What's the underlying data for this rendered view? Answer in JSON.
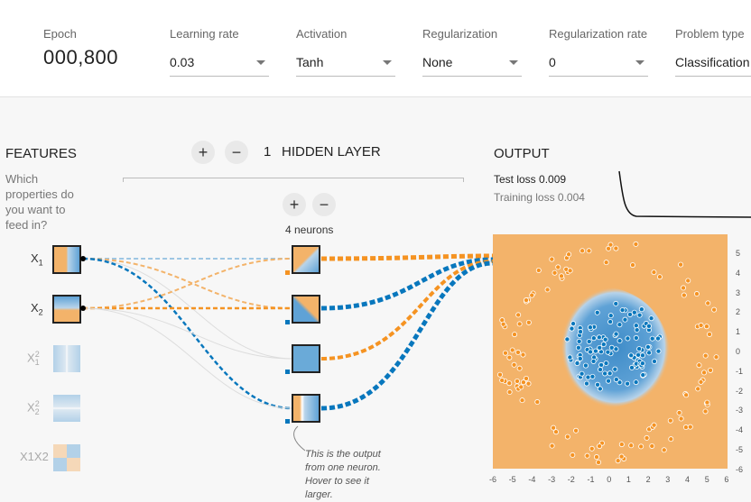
{
  "controls": {
    "epoch_label": "Epoch",
    "epoch_value": "000,800",
    "learning_rate_label": "Learning rate",
    "learning_rate_value": "0.03",
    "activation_label": "Activation",
    "activation_value": "Tanh",
    "regularization_label": "Regularization",
    "regularization_value": "None",
    "reg_rate_label": "Regularization rate",
    "reg_rate_value": "0",
    "problem_label": "Problem type",
    "problem_value": "Classification"
  },
  "features": {
    "title": "FEATURES",
    "question": [
      "Which",
      "properties do",
      "you want to",
      "feed in?"
    ],
    "items": [
      {
        "label": "X",
        "sup": "",
        "sub": "1",
        "active": true
      },
      {
        "label": "X",
        "sup": "",
        "sub": "2",
        "active": true
      },
      {
        "label": "X",
        "sup": "2",
        "sub": "1",
        "active": false
      },
      {
        "label": "X",
        "sup": "2",
        "sub": "2",
        "active": false
      },
      {
        "label": "X1X2",
        "sup": "",
        "sub": "",
        "active": false
      }
    ]
  },
  "hidden": {
    "plus": "+",
    "minus": "−",
    "count": "1",
    "title": "HIDDEN LAYER",
    "neurons_label": "4 neurons",
    "annotation": [
      "This is the output",
      "from one neuron.",
      "Hover to see it",
      "larger."
    ]
  },
  "output": {
    "title": "OUTPUT",
    "test_loss_label": "Test loss 0.009",
    "training_loss_label": "Training loss 0.004",
    "y_ticks": [
      "5",
      "4",
      "3",
      "2",
      "1",
      "0",
      "-1",
      "-2",
      "-3",
      "-4",
      "-5",
      "-6"
    ],
    "x_ticks": [
      "-6",
      "-5",
      "-4",
      "-3",
      "-2",
      "-1",
      "0",
      "1",
      "2",
      "3",
      "4",
      "5",
      "6"
    ]
  },
  "colors": {
    "orange": "#f59322",
    "blue": "#0877bd",
    "bg_orange": "#f3b36a",
    "bg_blue": "#5fa2d6"
  }
}
